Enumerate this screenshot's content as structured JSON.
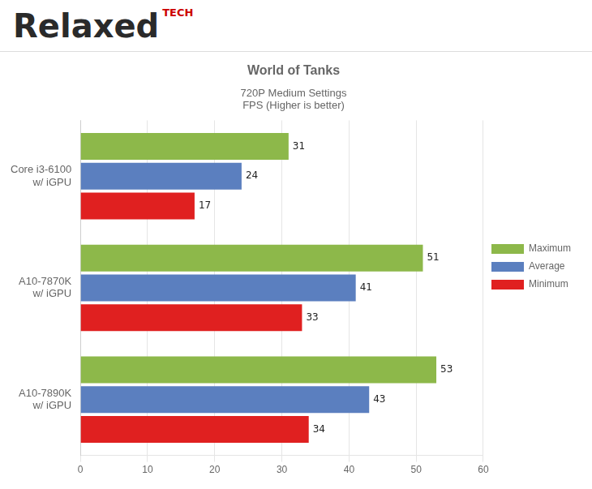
{
  "chart_data": {
    "type": "bar",
    "orientation": "horizontal",
    "title": "World of Tanks",
    "subtitle": [
      "720P Medium Settings",
      "FPS (Higher is better)"
    ],
    "annotations": [
      "Relaxed",
      "TECH"
    ],
    "categories": [
      "Core i3-6100\nw/ iGPU",
      "A10-7870K\nw/ iGPU",
      "A10-7890K\nw/ iGPU"
    ],
    "series": [
      {
        "name": "Maximum",
        "color": "#8DB84A",
        "values": [
          31,
          51,
          53
        ]
      },
      {
        "name": "Average",
        "color": "#5B7FBF",
        "values": [
          24,
          41,
          43
        ]
      },
      {
        "name": "Minimum",
        "color": "#E02020",
        "values": [
          17,
          33,
          34
        ]
      }
    ],
    "xlim": [
      0,
      60
    ],
    "xticks": [
      0,
      10,
      20,
      30,
      40,
      50,
      60
    ],
    "grid": true,
    "legend": "right",
    "data_labels": true
  }
}
